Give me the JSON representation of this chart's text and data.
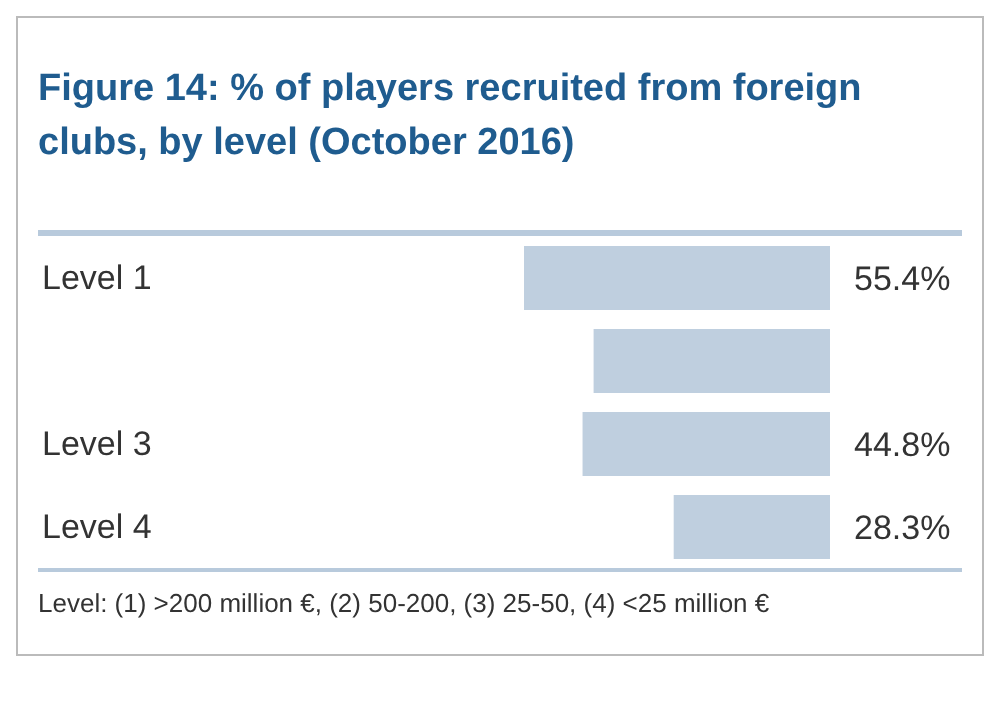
{
  "chart_data": {
    "type": "bar",
    "orientation": "horizontal",
    "title": "Figure 14: % of players recruited from foreign clubs, by level (October 2016)",
    "categories": [
      "Level 1",
      null,
      "Level 3",
      "Level 4"
    ],
    "values": [
      55.4,
      42.8,
      44.8,
      28.3
    ],
    "value_labels": [
      "55.4%",
      null,
      "44.8%",
      "28.3%"
    ],
    "color": "#bfcfdf",
    "tick_labels": "y",
    "annotations": [
      "Level: (1) >200 million €, (2) 50-200, (3) 25-50, (4) <25 million €"
    ]
  }
}
